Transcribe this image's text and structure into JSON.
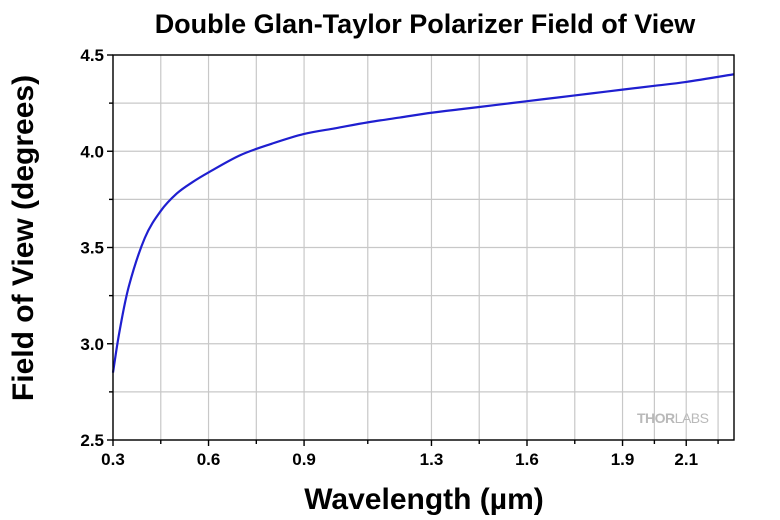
{
  "chart_data": {
    "type": "line",
    "title": "Double Glan-Taylor Polarizer Field of View",
    "xlabel": "Wavelength (µm)",
    "ylabel": "Field of View (degrees)",
    "xlim": [
      0.3,
      2.25
    ],
    "ylim": [
      2.5,
      4.5
    ],
    "x_ticks": [
      {
        "value": 0.3,
        "label": "0.3"
      },
      {
        "value": 0.6,
        "label": "0.6"
      },
      {
        "value": 0.9,
        "label": "0.9"
      },
      {
        "value": 1.3,
        "label": "1.3"
      },
      {
        "value": 1.6,
        "label": "1.6"
      },
      {
        "value": 1.9,
        "label": "1.9"
      },
      {
        "value": 2.1,
        "label": "2.1"
      }
    ],
    "y_ticks": [
      {
        "value": 2.5,
        "label": "2.5"
      },
      {
        "value": 3.0,
        "label": "3.0"
      },
      {
        "value": 3.5,
        "label": "3.5"
      },
      {
        "value": 4.0,
        "label": "4.0"
      },
      {
        "value": 4.5,
        "label": "4.5"
      }
    ],
    "grid": true,
    "series": [
      {
        "color": "#1f1fd0",
        "x": [
          0.3,
          0.32,
          0.35,
          0.4,
          0.45,
          0.5,
          0.55,
          0.6,
          0.7,
          0.8,
          0.9,
          1.0,
          1.1,
          1.2,
          1.3,
          1.4,
          1.5,
          1.6,
          1.7,
          1.8,
          1.9,
          2.0,
          2.1,
          2.25
        ],
        "y": [
          2.85,
          3.06,
          3.3,
          3.55,
          3.69,
          3.78,
          3.84,
          3.89,
          3.98,
          4.04,
          4.09,
          4.12,
          4.15,
          4.175,
          4.2,
          4.22,
          4.24,
          4.26,
          4.28,
          4.3,
          4.32,
          4.34,
          4.36,
          4.4
        ]
      }
    ]
  },
  "watermark": {
    "part1": "THOR",
    "part2": "LABS"
  }
}
